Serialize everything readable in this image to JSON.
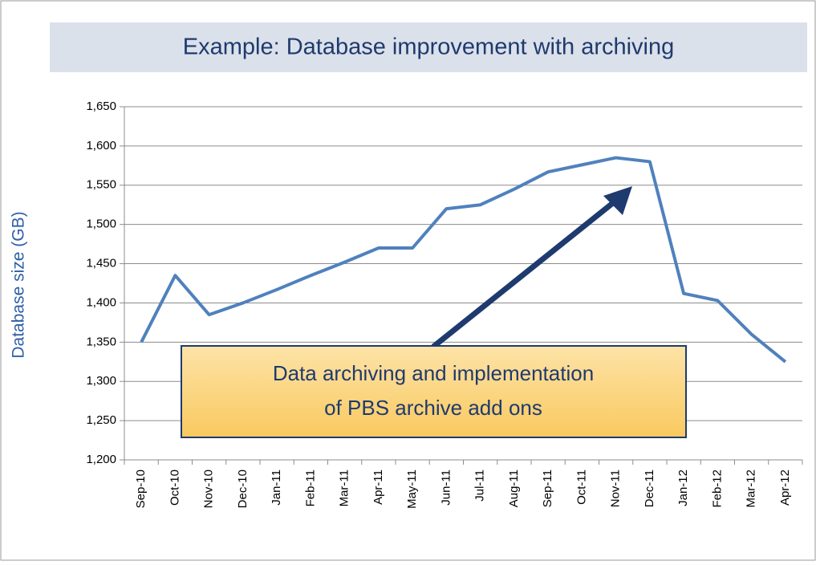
{
  "chart_data": {
    "type": "line",
    "title": "Example: Database improvement with archiving",
    "y_label": "Database size (GB)",
    "annotation": [
      "Data archiving and implementation",
      "of PBS archive add ons"
    ],
    "categories": [
      "Sep-10",
      "Oct-10",
      "Nov-10",
      "Dec-10",
      "Jan-11",
      "Feb-11",
      "Mar-11",
      "Apr-11",
      "May-11",
      "Jun-11",
      "Jul-11",
      "Aug-11",
      "Sep-11",
      "Oct-11",
      "Nov-11",
      "Dec-11",
      "Jan-12",
      "Feb-12",
      "Mar-12",
      "Apr-12"
    ],
    "series": [
      {
        "color": "#4f81bd",
        "values": [
          1350,
          1435,
          1385,
          1400,
          1417,
          1435,
          1452,
          1470,
          1470,
          1520,
          1525,
          1545,
          1567,
          1576,
          1585,
          1580,
          1412,
          1403,
          1360,
          1325
        ]
      }
    ],
    "ylim": [
      1200,
      1650
    ],
    "yticks": [
      {
        "value": 1200,
        "label": "1,200"
      },
      {
        "value": 1250,
        "label": "1,250"
      },
      {
        "value": 1300,
        "label": "1,300"
      },
      {
        "value": 1350,
        "label": "1,350"
      },
      {
        "value": 1400,
        "label": "1,400"
      },
      {
        "value": 1450,
        "label": "1,450"
      },
      {
        "value": 1500,
        "label": "1,500"
      },
      {
        "value": 1550,
        "label": "1,550"
      },
      {
        "value": 1600,
        "label": "1,600"
      },
      {
        "value": 1650,
        "label": "1,650"
      }
    ],
    "grid": true
  }
}
